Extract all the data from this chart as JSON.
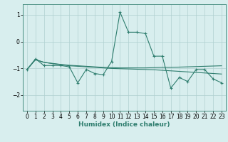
{
  "x": [
    0,
    1,
    2,
    3,
    4,
    5,
    6,
    7,
    8,
    9,
    10,
    11,
    12,
    13,
    14,
    15,
    16,
    17,
    18,
    19,
    20,
    21,
    22,
    23
  ],
  "y_main": [
    -1.05,
    -0.65,
    -0.9,
    -0.9,
    -0.9,
    -0.95,
    -1.55,
    -1.05,
    -1.2,
    -1.25,
    -0.75,
    1.1,
    0.35,
    0.35,
    0.3,
    -0.55,
    -0.55,
    -1.75,
    -1.35,
    -1.5,
    -1.05,
    -1.05,
    -1.4,
    -1.55
  ],
  "y_line1": [
    -1.05,
    -0.68,
    -0.78,
    -0.82,
    -0.86,
    -0.89,
    -0.91,
    -0.93,
    -0.95,
    -0.97,
    -0.98,
    -0.99,
    -0.99,
    -0.99,
    -0.99,
    -0.98,
    -0.97,
    -0.97,
    -0.96,
    -0.95,
    -0.94,
    -0.93,
    -0.92,
    -0.91
  ],
  "y_line2": [
    -1.05,
    -0.68,
    -0.78,
    -0.83,
    -0.87,
    -0.91,
    -0.93,
    -0.95,
    -0.97,
    -0.99,
    -1.01,
    -1.02,
    -1.03,
    -1.04,
    -1.05,
    -1.06,
    -1.08,
    -1.1,
    -1.12,
    -1.14,
    -1.16,
    -1.18,
    -1.2,
    -1.22
  ],
  "line_color": "#2e7d6e",
  "background_color": "#d8eeee",
  "grid_color": "#b0d0d0",
  "xlabel": "Humidex (Indice chaleur)",
  "ylim": [
    -2.6,
    1.4
  ],
  "xlim": [
    -0.5,
    23.5
  ],
  "yticks": [
    -2,
    -1,
    0,
    1
  ],
  "xticks": [
    0,
    1,
    2,
    3,
    4,
    5,
    6,
    7,
    8,
    9,
    10,
    11,
    12,
    13,
    14,
    15,
    16,
    17,
    18,
    19,
    20,
    21,
    22,
    23
  ],
  "tick_fontsize": 5.5,
  "xlabel_fontsize": 6.5,
  "linewidth": 0.8,
  "marker_size": 3
}
